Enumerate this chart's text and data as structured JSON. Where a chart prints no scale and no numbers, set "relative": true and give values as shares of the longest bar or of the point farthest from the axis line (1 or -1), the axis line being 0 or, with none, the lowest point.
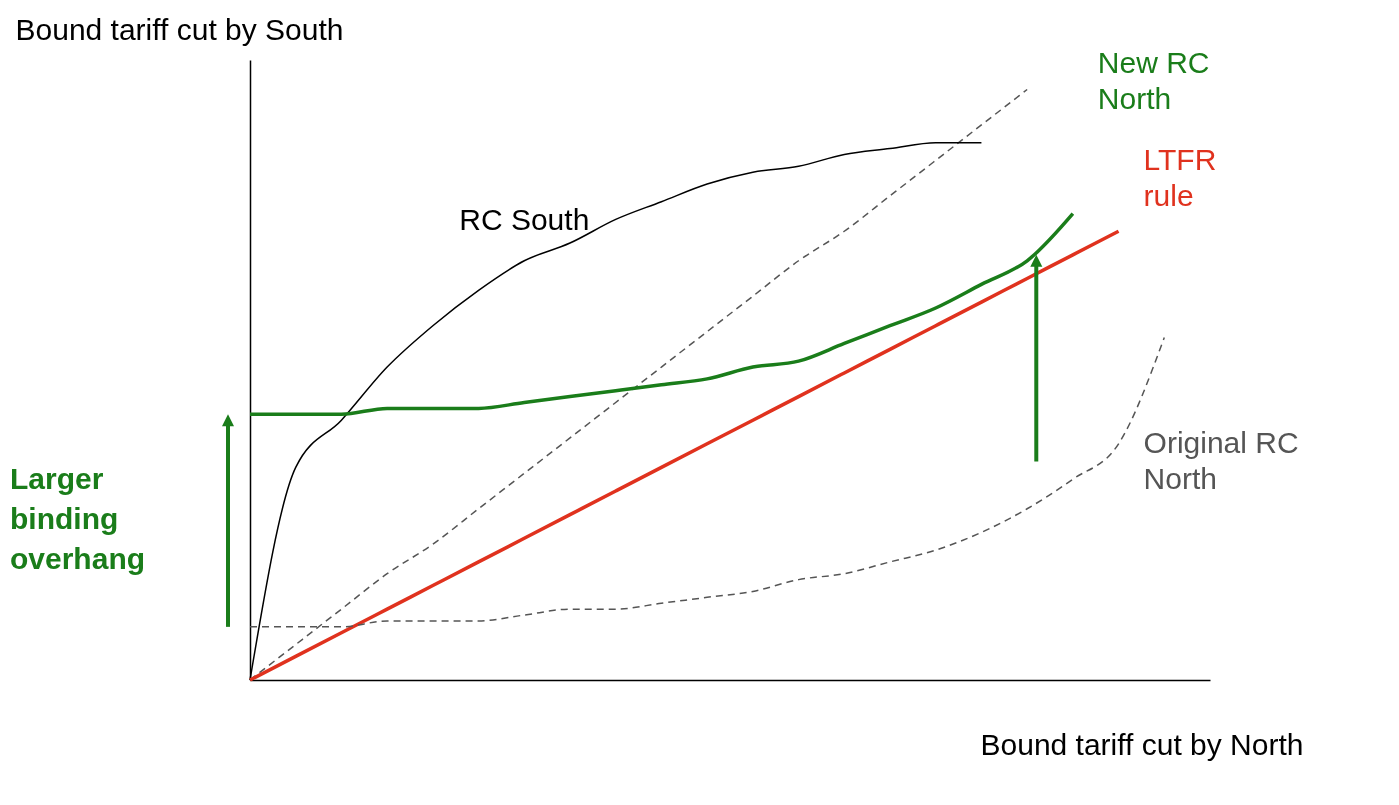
{
  "chart_data": {
    "type": "line",
    "relative": true,
    "xlabel": "Bound tariff cut by North",
    "ylabel": "Bound tariff cut by South",
    "categories": [
      null,
      null,
      null,
      null,
      null,
      null,
      null,
      null,
      null,
      null,
      null,
      null,
      null,
      null,
      null,
      null,
      null,
      null,
      null,
      null,
      null
    ],
    "annotations": [
      "Larger binding overhang"
    ],
    "series": [
      {
        "color": "#555555",
        "line_style": "dashed",
        "values": [
          0,
          0.06,
          0.12,
          0.18,
          0.23,
          0.29,
          0.35,
          0.41,
          0.47,
          0.53,
          0.59,
          0.65,
          0.71,
          0.76,
          0.82,
          0.88,
          0.94,
          1,
          null,
          null,
          null
        ]
      },
      {
        "name": "RC South",
        "color": "#000000",
        "line_style": "solid",
        "values": [
          0,
          0.36,
          0.44,
          0.53,
          0.6,
          0.66,
          0.71,
          0.74,
          0.78,
          0.81,
          0.84,
          0.86,
          0.87,
          0.89,
          0.9,
          0.91,
          0.91,
          null,
          null,
          null,
          null
        ]
      },
      {
        "name": "New RC North",
        "color": "#1a7d1a",
        "line_style": "solid",
        "values": [
          0.45,
          0.45,
          0.45,
          0.46,
          0.46,
          0.46,
          0.47,
          0.48,
          0.49,
          0.5,
          0.51,
          0.53,
          0.54,
          0.57,
          0.6,
          0.63,
          0.67,
          0.71,
          0.79,
          null,
          null
        ]
      },
      {
        "name": "LTFR rule",
        "color": "#e0321e",
        "line_style": "solid",
        "values": [
          0,
          0.04,
          0.08,
          0.12,
          0.16,
          0.2,
          0.24,
          0.28,
          0.32,
          0.36,
          0.4,
          0.44,
          0.48,
          0.52,
          0.56,
          0.6,
          0.64,
          0.68,
          0.72,
          0.76,
          null
        ]
      },
      {
        "name": "Original RC North",
        "color": "#555555",
        "line_style": "dashed",
        "values": [
          0.09,
          0.09,
          0.09,
          0.1,
          0.1,
          0.1,
          0.11,
          0.12,
          0.12,
          0.13,
          0.14,
          0.15,
          0.17,
          0.18,
          0.2,
          0.22,
          0.25,
          0.29,
          0.34,
          0.4,
          0.58
        ]
      }
    ]
  }
}
